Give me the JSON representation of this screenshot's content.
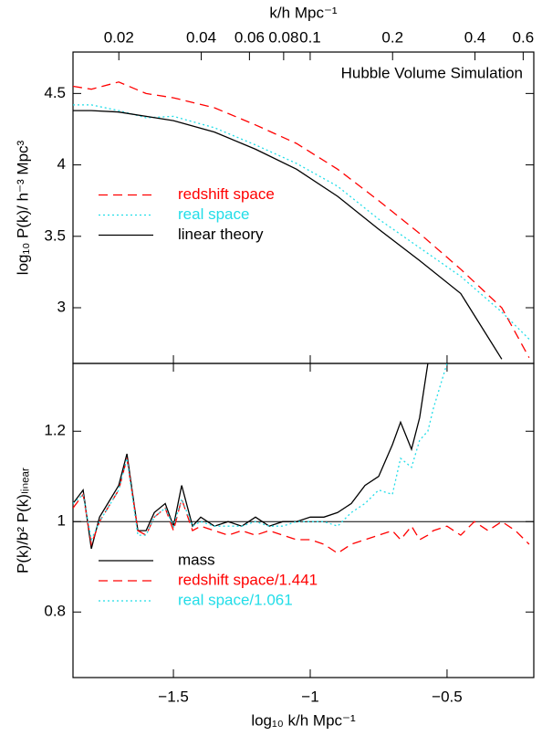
{
  "chart_data": [
    {
      "type": "line",
      "annotation": "Hubble Volume Simulation",
      "ylabel": "log₁₀ P(k)/ h⁻³ Mpc³",
      "x2label": "k/h Mpc⁻¹",
      "x2lim": [
        0.0136,
        0.656
      ],
      "x2log": true,
      "x2ticks": [
        0.02,
        0.04,
        0.06,
        0.08,
        0.1,
        0.2,
        0.4,
        0.6
      ],
      "xlim": [
        -1.867,
        -0.183
      ],
      "ylim": [
        2.61,
        4.79
      ],
      "yticks": [
        3,
        3.5,
        4,
        4.5
      ],
      "legend": "center left",
      "x": [
        -1.867,
        -1.8,
        -1.7,
        -1.6,
        -1.5,
        -1.35,
        -1.2,
        -1.05,
        -0.9,
        -0.75,
        -0.6,
        -0.45,
        -0.3,
        -0.2
      ],
      "series": [
        {
          "name": "redshift space",
          "color": "#ff0000",
          "dash": "dashed",
          "values": [
            4.55,
            4.53,
            4.58,
            4.5,
            4.47,
            4.4,
            4.28,
            4.15,
            3.97,
            3.75,
            3.52,
            3.27,
            3.0,
            2.65
          ]
        },
        {
          "name": "real space",
          "color": "#22dde8",
          "dash": "dotted",
          "values": [
            4.42,
            4.42,
            4.38,
            4.33,
            4.34,
            4.26,
            4.14,
            4.01,
            3.85,
            3.62,
            3.42,
            3.22,
            2.97,
            2.78
          ]
        },
        {
          "name": "linear theory",
          "color": "#000000",
          "dash": "solid",
          "values": [
            4.38,
            4.38,
            4.37,
            4.34,
            4.31,
            4.23,
            4.11,
            3.97,
            3.78,
            3.55,
            3.33,
            3.1,
            2.64,
            null
          ]
        }
      ]
    },
    {
      "type": "line",
      "ylabel": "P(k)/b² P(k)ₗᵢₙₑₐᵣ",
      "xlabel": "log₁₀ k/h Mpc⁻¹",
      "xlim": [
        -1.867,
        -0.183
      ],
      "xticks": [
        {
          "value": -1.5,
          "label": "−1.5"
        },
        {
          "value": -1,
          "label": "−1"
        },
        {
          "value": -0.5,
          "label": "−0.5"
        }
      ],
      "ylim": [
        0.655,
        1.35
      ],
      "yticks": [
        0.8,
        1,
        1.2
      ],
      "hline": 1,
      "legend": "lower left",
      "x": [
        -1.867,
        -1.83,
        -1.8,
        -1.77,
        -1.73,
        -1.7,
        -1.67,
        -1.63,
        -1.6,
        -1.57,
        -1.53,
        -1.5,
        -1.47,
        -1.43,
        -1.4,
        -1.35,
        -1.3,
        -1.25,
        -1.2,
        -1.15,
        -1.1,
        -1.05,
        -1.0,
        -0.95,
        -0.9,
        -0.85,
        -0.8,
        -0.75,
        -0.7,
        -0.67,
        -0.63,
        -0.6,
        -0.57,
        -0.55,
        -0.5,
        -0.45,
        -0.4,
        -0.35,
        -0.3,
        -0.25,
        -0.2
      ],
      "series": [
        {
          "name": "mass",
          "color": "#000000",
          "dash": "solid",
          "values": [
            1.04,
            1.07,
            0.94,
            1.01,
            1.05,
            1.08,
            1.15,
            0.98,
            0.98,
            1.02,
            1.04,
            0.99,
            1.08,
            0.99,
            1.01,
            0.99,
            1.0,
            0.99,
            1.01,
            0.99,
            1.0,
            1.0,
            1.01,
            1.01,
            1.02,
            1.04,
            1.08,
            1.1,
            1.17,
            1.22,
            1.16,
            1.23,
            1.35,
            null,
            null,
            null,
            null,
            null,
            null,
            null,
            null
          ]
        },
        {
          "name": "redshift space/1.441",
          "color": "#ff0000",
          "dash": "dashed",
          "values": [
            1.03,
            1.06,
            0.95,
            1.0,
            1.04,
            1.07,
            1.14,
            0.98,
            0.97,
            1.01,
            1.03,
            0.98,
            1.05,
            0.98,
            0.99,
            0.98,
            0.97,
            0.98,
            0.97,
            0.98,
            0.97,
            0.96,
            0.96,
            0.95,
            0.93,
            0.95,
            0.96,
            0.97,
            0.98,
            0.96,
            0.99,
            0.96,
            0.97,
            0.98,
            0.99,
            0.97,
            1.0,
            0.98,
            1.0,
            0.98,
            0.95
          ]
        },
        {
          "name": "real space/1.061",
          "color": "#22dde8",
          "dash": "dotted",
          "values": [
            1.04,
            1.06,
            0.96,
            1.0,
            1.04,
            1.07,
            1.14,
            0.97,
            0.97,
            1.01,
            1.03,
            0.99,
            1.05,
            0.99,
            1.0,
            0.99,
            0.99,
            0.99,
            1.0,
            0.99,
            0.99,
            1.0,
            1.0,
            1.0,
            0.99,
            1.02,
            1.04,
            1.07,
            1.06,
            1.14,
            1.12,
            1.18,
            1.2,
            1.25,
            1.35,
            null,
            null,
            null,
            null,
            null,
            null
          ]
        }
      ]
    }
  ]
}
